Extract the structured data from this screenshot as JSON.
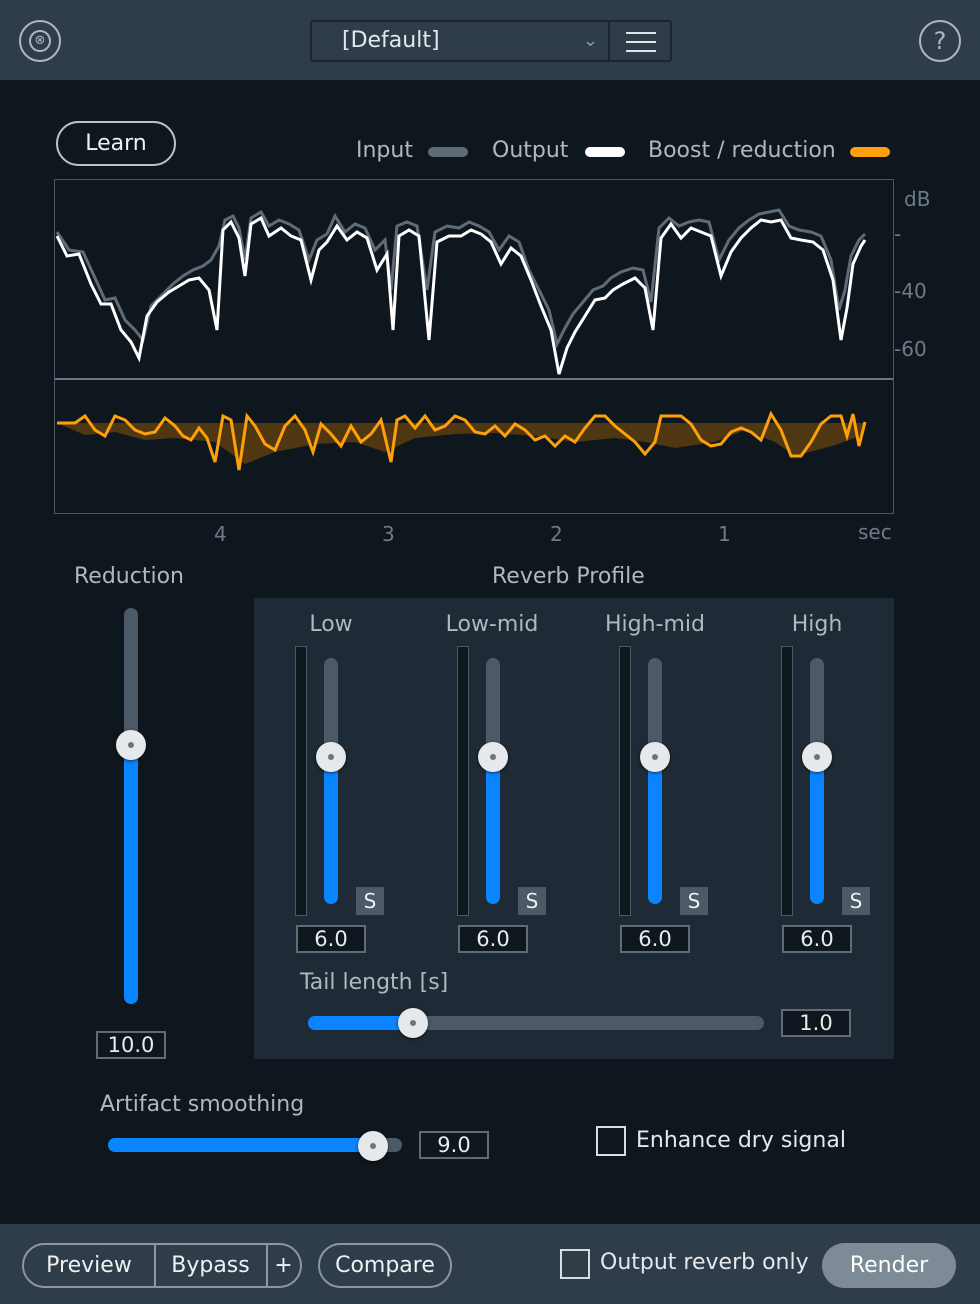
{
  "header": {
    "preset_name": "[Default]",
    "logo_icon": "module-logo-icon",
    "menu_icon": "hamburger-menu-icon",
    "help_label": "?"
  },
  "graph": {
    "learn_label": "Learn",
    "legend": [
      {
        "label": "Input",
        "color": "#5f6c78"
      },
      {
        "label": "Output",
        "color": "#ffffff"
      },
      {
        "label": "Boost / reduction",
        "color": "#ff9f0a"
      }
    ],
    "db_axis": [
      "dB",
      "-",
      "-40",
      "-60"
    ],
    "time_axis": [
      "4",
      "3",
      "2",
      "1",
      "sec"
    ]
  },
  "reduction": {
    "title": "Reduction",
    "value": "10.0",
    "level": 0.67
  },
  "reverb_profile": {
    "title": "Reverb Profile",
    "bands": [
      {
        "label": "Low",
        "value": "6.0",
        "solo": "S",
        "level": 0.6
      },
      {
        "label": "Low-mid",
        "value": "6.0",
        "solo": "S",
        "level": 0.6
      },
      {
        "label": "High-mid",
        "value": "6.0",
        "solo": "S",
        "level": 0.6
      },
      {
        "label": "High",
        "value": "6.0",
        "solo": "S",
        "level": 0.6
      }
    ],
    "tail_label": "Tail length [s]",
    "tail_value": "1.0",
    "tail_level": 0.23
  },
  "artifact": {
    "label": "Artifact smoothing",
    "value": "9.0",
    "level": 0.9
  },
  "enhance": {
    "label": "Enhance dry signal",
    "checked": false
  },
  "footer": {
    "preview": "Preview",
    "bypass": "Bypass",
    "plus": "+",
    "compare": "Compare",
    "output_reverb_only": "Output reverb only",
    "render": "Render"
  },
  "colors": {
    "accent": "#0a84ff",
    "boost": "#ff9f0a",
    "input": "#5f6c78",
    "output": "#ffffff"
  }
}
